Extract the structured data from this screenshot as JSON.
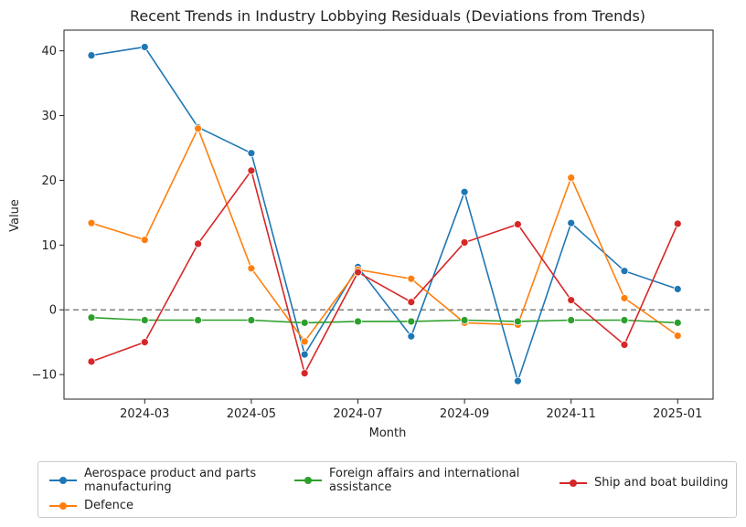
{
  "chart_data": {
    "type": "line",
    "title": "Recent Trends in Industry Lobbying Residuals (Deviations from Trends)",
    "xlabel": "Month",
    "ylabel": "Value",
    "x": [
      "2024-02",
      "2024-03",
      "2024-04",
      "2024-05",
      "2024-06",
      "2024-07",
      "2024-08",
      "2024-09",
      "2024-10",
      "2024-11",
      "2024-12",
      "2025-01"
    ],
    "x_ticks": [
      "2024-03",
      "2024-05",
      "2024-07",
      "2024-09",
      "2024-11",
      "2025-01"
    ],
    "y_ticks": [
      -10,
      0,
      10,
      20,
      30,
      40
    ],
    "ylim": [
      -13.8,
      43.2
    ],
    "reference_line": 0,
    "grid": false,
    "legend_position": "bottom",
    "series": [
      {
        "name": "Aerospace product and parts manufacturing",
        "color": "#1f77b4",
        "values": [
          39.3,
          40.6,
          28.2,
          24.2,
          -6.9,
          6.6,
          -4.1,
          18.2,
          -11.0,
          13.4,
          6.0,
          3.2
        ]
      },
      {
        "name": "Defence",
        "color": "#ff7f0e",
        "values": [
          13.4,
          10.8,
          28.0,
          6.4,
          -4.9,
          6.2,
          4.8,
          -2.0,
          -2.3,
          20.4,
          1.8,
          -4.0
        ]
      },
      {
        "name": "Foreign affairs and international assistance",
        "color": "#2ca02c",
        "values": [
          -1.2,
          -1.6,
          -1.6,
          -1.6,
          -2.0,
          -1.8,
          -1.8,
          -1.6,
          -1.8,
          -1.6,
          -1.6,
          -2.0
        ]
      },
      {
        "name": "Ship and boat building",
        "color": "#d62728",
        "values": [
          -8.0,
          -5.0,
          10.2,
          21.5,
          -9.8,
          5.8,
          1.2,
          10.4,
          13.2,
          1.5,
          -5.4,
          13.3
        ]
      }
    ]
  },
  "legend": {
    "aerospace": "Aerospace product and parts\nmanufacturing",
    "defence": "Defence",
    "foreign": "Foreign affairs and international\nassistance",
    "ship": "Ship and boat building"
  }
}
